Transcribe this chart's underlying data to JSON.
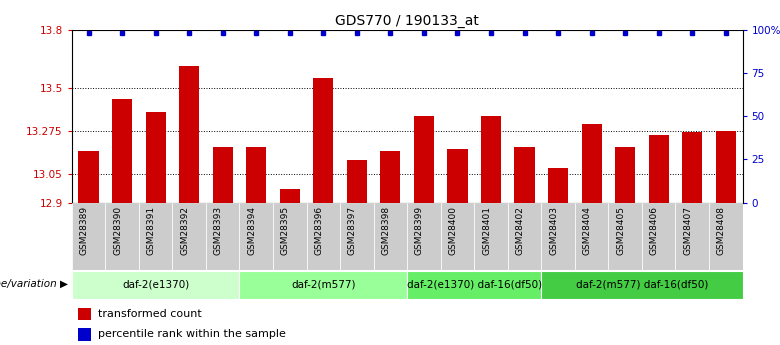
{
  "title": "GDS770 / 190133_at",
  "categories": [
    "GSM28389",
    "GSM28390",
    "GSM28391",
    "GSM28392",
    "GSM28393",
    "GSM28394",
    "GSM28395",
    "GSM28396",
    "GSM28397",
    "GSM28398",
    "GSM28399",
    "GSM28400",
    "GSM28401",
    "GSM28402",
    "GSM28403",
    "GSM28404",
    "GSM28405",
    "GSM28406",
    "GSM28407",
    "GSM28408"
  ],
  "bar_values": [
    13.17,
    13.44,
    13.37,
    13.61,
    13.19,
    13.19,
    12.97,
    13.55,
    13.12,
    13.17,
    13.35,
    13.18,
    13.35,
    13.19,
    13.08,
    13.31,
    13.19,
    13.25,
    13.27,
    13.275
  ],
  "ylim": [
    12.9,
    13.8
  ],
  "yticks": [
    12.9,
    13.05,
    13.275,
    13.5,
    13.8
  ],
  "ytick_labels": [
    "12.9",
    "13.05",
    "13.275",
    "13.5",
    "13.8"
  ],
  "right_yticks": [
    0,
    25,
    50,
    75,
    100
  ],
  "right_ytick_labels": [
    "0",
    "25",
    "50",
    "75",
    "100%"
  ],
  "bar_color": "#cc0000",
  "dot_color": "#0000cc",
  "groups": [
    {
      "label": "daf-2(e1370)",
      "start": 0,
      "end": 4,
      "color": "#ccffcc"
    },
    {
      "label": "daf-2(m577)",
      "start": 5,
      "end": 9,
      "color": "#99ff99"
    },
    {
      "label": "daf-2(e1370) daf-16(df50)",
      "start": 10,
      "end": 13,
      "color": "#66ee66"
    },
    {
      "label": "daf-2(m577) daf-16(df50)",
      "start": 14,
      "end": 19,
      "color": "#44cc44"
    }
  ],
  "genotype_label": "genotype/variation",
  "legend_items": [
    {
      "label": "transformed count",
      "color": "#cc0000"
    },
    {
      "label": "percentile rank within the sample",
      "color": "#0000cc"
    }
  ],
  "fig_width": 7.8,
  "fig_height": 3.45,
  "dpi": 100
}
